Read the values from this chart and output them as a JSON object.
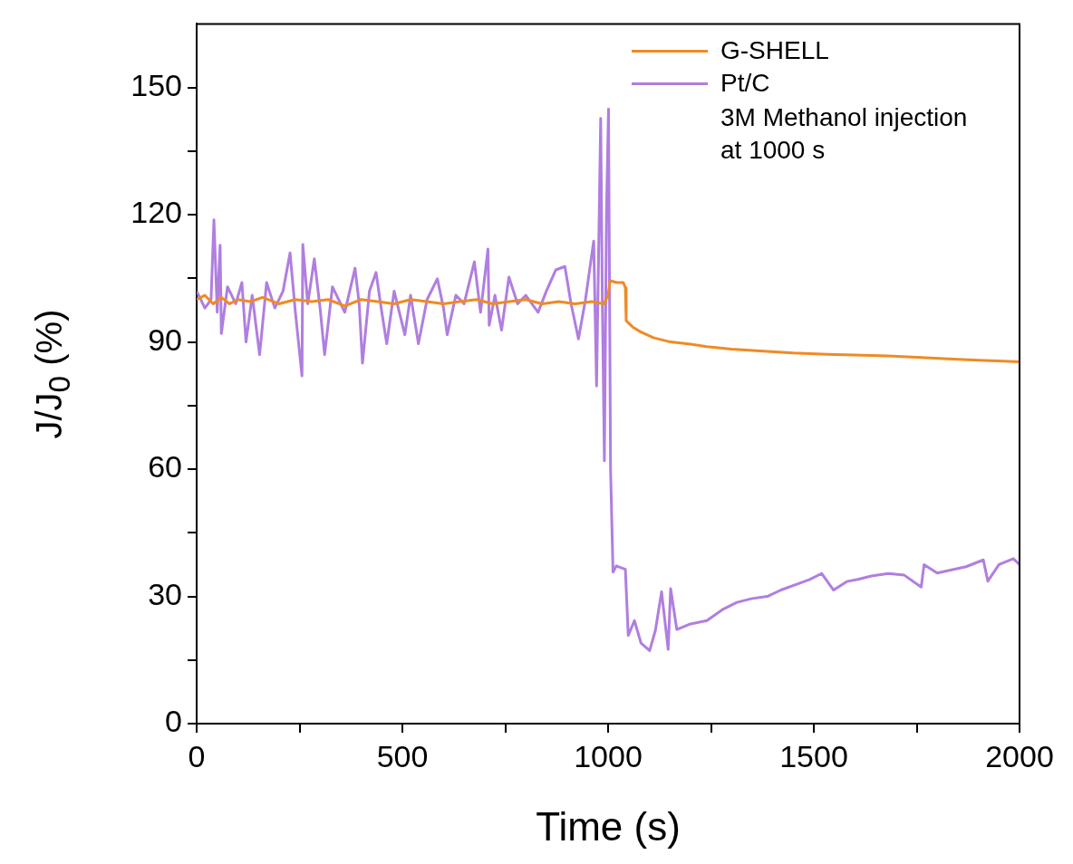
{
  "chart_data": {
    "type": "line",
    "xlabel": "Time (s)",
    "ylabel": "J/J$_{0}$ (%)",
    "xlim": [
      0,
      2000
    ],
    "ylim": [
      0,
      165
    ],
    "xticks": [
      0,
      {
        "value": 250,
        "label": null
      },
      500,
      {
        "value": 750,
        "label": null
      },
      1000,
      {
        "value": 1250,
        "label": null
      },
      1500,
      {
        "value": 1750,
        "label": null
      },
      2000
    ],
    "yticks": [
      0,
      {
        "value": 15,
        "label": null
      },
      30,
      {
        "value": 45,
        "label": null
      },
      60,
      {
        "value": 75,
        "label": null
      },
      90,
      {
        "value": 105,
        "label": null
      },
      120,
      {
        "value": 135,
        "label": null
      },
      150
    ],
    "grid": false,
    "legend": "top right",
    "marker": "none",
    "line_style": "solid",
    "annotations": [
      "3M Methanol injection at 1000 s"
    ],
    "series": [
      {
        "name": "G-SHELL",
        "color": "#f08a24",
        "x": [
          0,
          20,
          40,
          60,
          80,
          100,
          130,
          160,
          200,
          240,
          280,
          320,
          360,
          400,
          440,
          480,
          520,
          560,
          600,
          640,
          680,
          720,
          760,
          800,
          840,
          880,
          920,
          960,
          990,
          1000,
          1005,
          1020,
          1037,
          1042,
          1044,
          1060,
          1079,
          1110,
          1152,
          1200,
          1240,
          1300,
          1387,
          1450,
          1534,
          1600,
          1681,
          1750,
          1827,
          1900,
          1960,
          2000
        ],
        "values": [
          100,
          101,
          99,
          100.5,
          99,
          100,
          99.5,
          100.5,
          99,
          100,
          99.5,
          100,
          98.5,
          100,
          99.5,
          99,
          100,
          99.5,
          99,
          99.5,
          100,
          99,
          99.5,
          100,
          99,
          99.5,
          99,
          99.5,
          99,
          101,
          104.5,
          104,
          104,
          102.8,
          95,
          93.5,
          92.4,
          91,
          90,
          89.5,
          88.9,
          88.3,
          87.8,
          87.4,
          87.1,
          86.9,
          86.7,
          86.4,
          86,
          85.7,
          85.5,
          85.3
        ]
      },
      {
        "name": "Pt/C",
        "color": "#b07ee0",
        "x": [
          0,
          20,
          35,
          42,
          50,
          57,
          60,
          75,
          95,
          110,
          120,
          135,
          153,
          170,
          190,
          210,
          227,
          240,
          256,
          258,
          270,
          286,
          300,
          311,
          330,
          360,
          385,
          395,
          403,
          420,
          436,
          450,
          462,
          480,
          506,
          520,
          539,
          560,
          585,
          600,
          609,
          630,
          650,
          675,
          690,
          708,
          711,
          725,
          741,
          759,
          780,
          800,
          830,
          850,
          873,
          895,
          910,
          928,
          945,
          965,
          972,
          982,
          986,
          991,
          996,
          1001,
          1006,
          1012,
          1020,
          1042,
          1049,
          1064,
          1080,
          1101,
          1115,
          1130,
          1146,
          1152,
          1167,
          1200,
          1240,
          1280,
          1313,
          1350,
          1387,
          1420,
          1460,
          1490,
          1519,
          1548,
          1580,
          1607,
          1640,
          1681,
          1720,
          1761,
          1768,
          1800,
          1827,
          1870,
          1912,
          1923,
          1950,
          1985,
          2000
        ],
        "values": [
          102,
          98,
          100,
          118.8,
          97,
          112.8,
          92,
          103,
          99,
          104,
          90,
          101,
          87,
          104,
          98,
          102,
          111,
          97,
          82,
          113,
          99,
          109.6,
          98,
          87,
          103,
          97,
          107.4,
          99,
          85,
          102,
          106.4,
          97,
          89.6,
          102,
          91.7,
          101,
          89.6,
          100,
          104.9,
          98,
          91.7,
          101,
          99,
          108.9,
          97,
          111.9,
          93.9,
          101,
          92.8,
          105.3,
          99,
          101,
          97,
          102,
          107,
          107.8,
          99,
          90.7,
          100,
          113.8,
          79.6,
          142.7,
          100,
          62,
          120,
          144.9,
          60,
          35.7,
          37.2,
          36.4,
          20.8,
          24.3,
          19,
          17.2,
          22,
          31.1,
          17.5,
          31.8,
          22.2,
          23.5,
          24.3,
          27,
          28.6,
          29.5,
          30,
          31.5,
          32.9,
          34,
          35.4,
          31.5,
          33.5,
          34,
          34.8,
          35.4,
          35,
          32.2,
          37.5,
          35.5,
          36.1,
          37,
          38.6,
          33.6,
          37.5,
          38.9,
          37.5
        ]
      }
    ]
  }
}
